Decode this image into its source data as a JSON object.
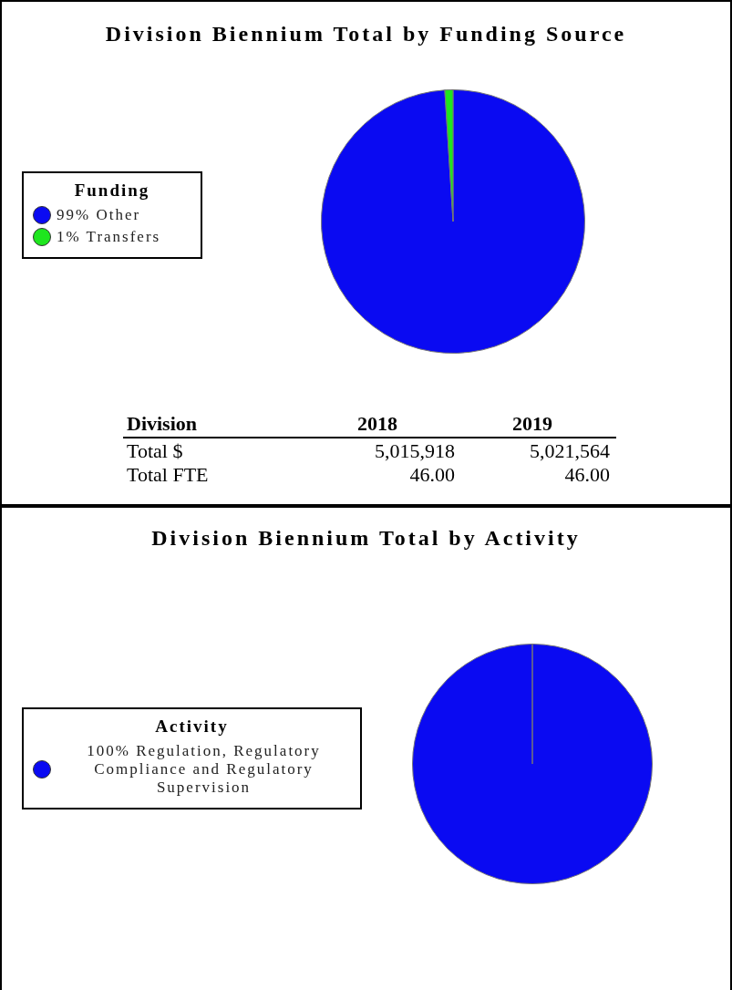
{
  "chart_data": [
    {
      "type": "pie",
      "title": "Division Biennium Total by Funding Source",
      "legend_title": "Funding",
      "legend": "left",
      "categories": [
        "Other",
        "Transfers"
      ],
      "values": [
        99,
        1
      ],
      "value_labels": [
        "99%",
        "1%"
      ],
      "colors": [
        "#0a0af2",
        "#1ee61e"
      ]
    },
    {
      "type": "other",
      "annotations": [
        "Division",
        "2018",
        "2019",
        "Total $",
        "5,015,918",
        "5,021,564",
        "Total FTE",
        "46.00",
        "46.00"
      ]
    },
    {
      "type": "pie",
      "title": "Division Biennium Total by Activity",
      "legend_title": "Activity",
      "legend": "left",
      "categories": [
        "Regulation, Regulatory Compliance and Regulatory Supervision"
      ],
      "values": [
        100
      ],
      "value_labels": [
        "100%"
      ],
      "colors": [
        "#0a0af2"
      ]
    }
  ]
}
